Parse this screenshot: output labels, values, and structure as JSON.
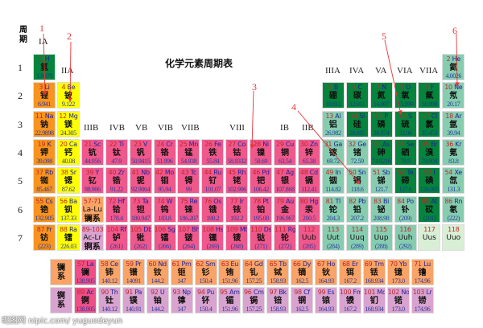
{
  "title": "化学元素周期表",
  "period_label": "周期",
  "periods": [
    "1",
    "2",
    "3",
    "4",
    "5",
    "6",
    "7"
  ],
  "groups": {
    "IA": "IA",
    "IIA": "IIA",
    "IIIB": "IIIB",
    "IVB": "IVB",
    "VB": "VB",
    "VIB": "VIB",
    "VIIB": "VIIB",
    "VIII": "VIII",
    "IB": "IB",
    "IIB": "IIB",
    "IIIA": "IIIA",
    "IVA": "IVA",
    "VA": "VA",
    "VIA": "VIA",
    "VIIA": "VIIA"
  },
  "annotations": [
    "1",
    "2",
    "3",
    "4",
    "5",
    "6"
  ],
  "watermark": "昵图网 nipic.com/ yuguodeyun",
  "colors": {
    "alkali": "#f7931e",
    "alkaline_earth": "#ffff00",
    "transition": "#f0578a",
    "nonmetal": "#04843c",
    "other": "#86cdb0",
    "lanthanide": "#f9a366",
    "actinide": "#d9a3cf",
    "annotation": "#e8363a"
  },
  "elements": [
    [
      "1",
      "H",
      "氢",
      "1.0079",
      "g",
      1,
      1
    ],
    [
      "2",
      "He",
      "氦",
      "4.0026",
      "t",
      1,
      18
    ],
    [
      "3",
      "Li",
      "锂",
      "6.941",
      "o",
      2,
      1
    ],
    [
      "4",
      "Be",
      "铍",
      "9.122",
      "y",
      2,
      2
    ],
    [
      "5",
      "B",
      "硼",
      "10.811",
      "g",
      2,
      13
    ],
    [
      "6",
      "C",
      "碳",
      "12.011",
      "g",
      2,
      14
    ],
    [
      "7",
      "N",
      "氮",
      "14.007",
      "g",
      2,
      15
    ],
    [
      "8",
      "O",
      "氧",
      "15.999",
      "g",
      2,
      16
    ],
    [
      "9",
      "F",
      "氟",
      "18.998",
      "g",
      2,
      17
    ],
    [
      "10",
      "Ne",
      "氖",
      "20.17",
      "t",
      2,
      18
    ],
    [
      "11",
      "Na",
      "钠",
      "22.9898",
      "o",
      3,
      1
    ],
    [
      "12",
      "Mg",
      "镁",
      "24.305",
      "y",
      3,
      2
    ],
    [
      "13",
      "Al",
      "铝",
      "26.982",
      "t",
      3,
      13
    ],
    [
      "14",
      "Si",
      "硅",
      "28.085",
      "g",
      3,
      14
    ],
    [
      "15",
      "P",
      "磷",
      "30.974",
      "g",
      3,
      15
    ],
    [
      "16",
      "S",
      "硫",
      "32.06",
      "g",
      3,
      16
    ],
    [
      "17",
      "Cl",
      "氯",
      "35.453",
      "g",
      3,
      17
    ],
    [
      "18",
      "Ar",
      "氩",
      "39.94",
      "t",
      3,
      18
    ],
    [
      "19",
      "K",
      "钾",
      "39.098",
      "o",
      4,
      1
    ],
    [
      "20",
      "Ca",
      "钙",
      "40.08",
      "y",
      4,
      2
    ],
    [
      "21",
      "Sc",
      "钪",
      "44.956",
      "p",
      4,
      3
    ],
    [
      "22",
      "Ti",
      "钛",
      "47.9",
      "p",
      4,
      4
    ],
    [
      "23",
      "V",
      "钒",
      "50.9415",
      "p",
      4,
      5
    ],
    [
      "24",
      "Cr",
      "铬",
      "51.996",
      "p",
      4,
      6
    ],
    [
      "25",
      "Mn",
      "锰",
      "54.938",
      "p",
      4,
      7
    ],
    [
      "26",
      "Fe",
      "铁",
      "55.84",
      "p",
      4,
      8
    ],
    [
      "27",
      "Co",
      "钴",
      "58.9332",
      "p",
      4,
      9
    ],
    [
      "28",
      "Ni",
      "镍",
      "58.69",
      "p",
      4,
      10
    ],
    [
      "29",
      "Cu",
      "铜",
      "63.54",
      "p",
      4,
      11
    ],
    [
      "30",
      "Zn",
      "锌",
      "65.38",
      "p",
      4,
      12
    ],
    [
      "31",
      "Ga",
      "镓",
      "69.72",
      "t",
      4,
      13
    ],
    [
      "32",
      "Ge",
      "锗",
      "72.59",
      "t",
      4,
      14
    ],
    [
      "33",
      "As",
      "砷",
      "74.9216",
      "g",
      4,
      15
    ],
    [
      "34",
      "Se",
      "硒",
      "78.9",
      "g",
      4,
      16
    ],
    [
      "35",
      "Br",
      "溴",
      "79.904",
      "g",
      4,
      17
    ],
    [
      "36",
      "Kr",
      "氪",
      "83.8",
      "t",
      4,
      18
    ],
    [
      "37",
      "Rb",
      "铷",
      "85.467",
      "o",
      5,
      1
    ],
    [
      "38",
      "Sr",
      "锶",
      "87.62",
      "y",
      5,
      2
    ],
    [
      "39",
      "Y",
      "钇",
      "88.906",
      "p",
      5,
      3
    ],
    [
      "40",
      "Zr",
      "锆",
      "91.22",
      "p",
      5,
      4
    ],
    [
      "41",
      "Nb",
      "铌",
      "92.9064",
      "p",
      5,
      5
    ],
    [
      "42",
      "Mo",
      "钼",
      "95.94",
      "p",
      5,
      6
    ],
    [
      "43",
      "Tc",
      "锝",
      "99",
      "p",
      5,
      7
    ],
    [
      "44",
      "Ru",
      "钌",
      "101.07",
      "p",
      5,
      8
    ],
    [
      "45",
      "Rh",
      "铑",
      "102.906",
      "p",
      5,
      9
    ],
    [
      "46",
      "Pd",
      "钯",
      "106.42",
      "p",
      5,
      10
    ],
    [
      "47",
      "Ag",
      "银",
      "107.868",
      "p",
      5,
      11
    ],
    [
      "48",
      "Cd",
      "镉",
      "112.41",
      "p",
      5,
      12
    ],
    [
      "49",
      "In",
      "铟",
      "114.82",
      "t",
      5,
      13
    ],
    [
      "50",
      "Sn",
      "锡",
      "118.6",
      "t",
      5,
      14
    ],
    [
      "51",
      "Sb",
      "锑",
      "121.7",
      "t",
      5,
      15
    ],
    [
      "52",
      "Te",
      "碲",
      "127.6",
      "g",
      5,
      16
    ],
    [
      "53",
      "I",
      "碘",
      "126.905",
      "g",
      5,
      17
    ],
    [
      "54",
      "Xe",
      "氙",
      "131.3",
      "t",
      5,
      18
    ],
    [
      "55",
      "Cs",
      "铯",
      "132.905",
      "o",
      6,
      1
    ],
    [
      "56",
      "Ba",
      "钡",
      "137.33",
      "y",
      6,
      2
    ],
    [
      "57-71",
      "La-Lu",
      "镧系",
      "",
      "l",
      6,
      3
    ],
    [
      "72",
      "Hf",
      "铪",
      "178.4",
      "p",
      6,
      4
    ],
    [
      "73",
      "Ta",
      "钽",
      "180.947",
      "p",
      6,
      5
    ],
    [
      "74",
      "W",
      "钨",
      "183.8",
      "p",
      6,
      6
    ],
    [
      "75",
      "Re",
      "铼",
      "186.207",
      "p",
      6,
      7
    ],
    [
      "76",
      "Os",
      "锇",
      "190.2",
      "p",
      6,
      8
    ],
    [
      "77",
      "Ir",
      "铱",
      "192.2",
      "p",
      6,
      9
    ],
    [
      "78",
      "Pt",
      "铂",
      "195.08",
      "p",
      6,
      10
    ],
    [
      "79",
      "Au",
      "金",
      "196.967",
      "p",
      6,
      11
    ],
    [
      "80",
      "Hg",
      "汞",
      "200.5",
      "p",
      6,
      12
    ],
    [
      "81",
      "Tl",
      "铊",
      "204.3",
      "t",
      6,
      13
    ],
    [
      "82",
      "Pb",
      "铅",
      "207.2",
      "t",
      6,
      14
    ],
    [
      "83",
      "Bi",
      "铋",
      "208.98",
      "t",
      6,
      15
    ],
    [
      "84",
      "Po",
      "钋",
      "(209)",
      "t",
      6,
      16
    ],
    [
      "85",
      "At",
      "砹",
      "(201)",
      "g",
      6,
      17
    ],
    [
      "86",
      "Rn",
      "氡",
      "(222)",
      "t",
      6,
      18
    ],
    [
      "87",
      "Fr",
      "钫",
      "(223)",
      "o",
      7,
      1
    ],
    [
      "88",
      "Ra",
      "镭",
      "226.03",
      "y",
      7,
      2
    ],
    [
      "89-103",
      "Ac-Lr",
      "锕系",
      "",
      "a",
      7,
      3
    ],
    [
      "104",
      "Rf",
      "𬬻",
      "(261)",
      "p",
      7,
      4
    ],
    [
      "105",
      "Db",
      "𬭊",
      "(262)",
      "p",
      7,
      5
    ],
    [
      "106",
      "Sg",
      "𬭳",
      "(266)",
      "p",
      7,
      6
    ],
    [
      "107",
      "Bh",
      "𬭛",
      "(264)",
      "p",
      7,
      7
    ],
    [
      "108",
      "Hs",
      "𬭶",
      "(269)",
      "p",
      7,
      8
    ],
    [
      "109",
      "Mt",
      "鿏",
      "(268)",
      "p",
      7,
      9
    ],
    [
      "110",
      "Ds",
      "𫟼",
      "(271)",
      "p",
      7,
      10
    ],
    [
      "111",
      "Rg",
      "𬬭",
      "(272)",
      "p",
      7,
      11
    ],
    [
      "112",
      "Uub",
      "",
      "(285)",
      "p",
      7,
      12
    ],
    [
      "113",
      "Uut",
      "",
      "(284)",
      "t",
      7,
      13
    ],
    [
      "114",
      "Uuq",
      "",
      "(289)",
      "t",
      7,
      14
    ],
    [
      "115",
      "Uup",
      "",
      "(288)",
      "t",
      7,
      15
    ],
    [
      "116",
      "Uuh",
      "",
      "(292)",
      "t",
      7,
      16
    ],
    [
      "117",
      "Uus",
      "",
      "",
      "w",
      7,
      17
    ],
    [
      "118",
      "Uuo",
      "",
      "",
      "w",
      7,
      18
    ]
  ],
  "lanthanide_label": "镧系",
  "actinide_label": "锕系",
  "lanthanides": [
    [
      "57",
      "La",
      "镧",
      "138.905",
      "lp"
    ],
    [
      "58",
      "Ce",
      "铈",
      "140.12",
      "l"
    ],
    [
      "59",
      "Pr",
      "镨",
      "14091",
      "l"
    ],
    [
      "60",
      "Nd",
      "钕",
      "144.2",
      "l"
    ],
    [
      "61",
      "Pm",
      "钷",
      "147",
      "l"
    ],
    [
      "62",
      "Sm",
      "钐",
      "150.4",
      "l"
    ],
    [
      "63",
      "Eu",
      "铕",
      "151.96",
      "l"
    ],
    [
      "64",
      "Gd",
      "钆",
      "157.25",
      "l"
    ],
    [
      "65",
      "Tb",
      "铽",
      "158.93",
      "l"
    ],
    [
      "66",
      "Dy",
      "镝",
      "162.5",
      "l"
    ],
    [
      "67",
      "Ho",
      "钬",
      "164.93",
      "l"
    ],
    [
      "68",
      "Er",
      "铒",
      "167.2",
      "l"
    ],
    [
      "69",
      "Tm",
      "铥",
      "168.934",
      "l"
    ],
    [
      "70",
      "Yb",
      "镱",
      "173.0",
      "l"
    ],
    [
      "71",
      "Lu",
      "镥",
      "174.96",
      "l"
    ]
  ],
  "actinides": [
    [
      "89",
      "Ac",
      "锕",
      "138.905",
      "lp"
    ],
    [
      "90",
      "Th",
      "钍",
      "140.12",
      "a"
    ],
    [
      "91",
      "Pa",
      "镤",
      "140.91",
      "a"
    ],
    [
      "92",
      "U",
      "铀",
      "144.2",
      "a"
    ],
    [
      "93",
      "Np",
      "镎",
      "147",
      "a"
    ],
    [
      "94",
      "Pu",
      "钚",
      "150.4",
      "a"
    ],
    [
      "95",
      "Am",
      "镅",
      "151.96",
      "a"
    ],
    [
      "96",
      "Cm",
      "锔",
      "157.25",
      "a"
    ],
    [
      "97",
      "Bk",
      "锫",
      "158.93",
      "a"
    ],
    [
      "98",
      "Cf",
      "锎",
      "162.5",
      "a"
    ],
    [
      "99",
      "Es",
      "锿",
      "164.93",
      "a"
    ],
    [
      "100",
      "Fm",
      "镄",
      "167.2",
      "a"
    ],
    [
      "101",
      "Md",
      "钔",
      "168.934",
      "a"
    ],
    [
      "102",
      "No",
      "锘",
      "173.0",
      "a"
    ],
    [
      "103",
      "Lr",
      "铹",
      "174.96",
      "a"
    ]
  ]
}
